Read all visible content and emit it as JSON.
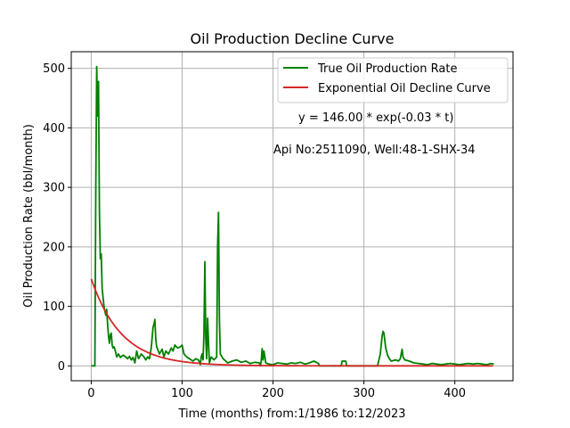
{
  "chart_data": {
    "type": "line",
    "title": "Oil Production Decline Curve",
    "xlabel": "Time (months) from:1/1986 to:12/2023",
    "ylabel": "Oil Production Rate (bbl/month)",
    "xlim": [
      -22,
      464
    ],
    "ylim": [
      -25,
      528
    ],
    "x_ticks": [
      0,
      100,
      200,
      300,
      400
    ],
    "y_ticks": [
      0,
      100,
      200,
      300,
      400,
      500
    ],
    "grid": true,
    "legend_position": "upper-right",
    "annotations": {
      "equation": "y = 146.00 * exp(-0.03 * t)",
      "well": "Api No:2511090, Well:48-1-SHX-34"
    },
    "series": [
      {
        "name": "True Oil Production Rate",
        "color": "#008000",
        "points": [
          [
            0,
            0
          ],
          [
            4,
            0
          ],
          [
            5,
            300
          ],
          [
            6,
            503
          ],
          [
            7,
            420
          ],
          [
            8,
            478
          ],
          [
            9,
            260
          ],
          [
            10,
            180
          ],
          [
            11,
            188
          ],
          [
            12,
            130
          ],
          [
            13,
            115
          ],
          [
            14,
            100
          ],
          [
            15,
            92
          ],
          [
            16,
            85
          ],
          [
            17,
            95
          ],
          [
            18,
            70
          ],
          [
            19,
            50
          ],
          [
            20,
            38
          ],
          [
            21,
            52
          ],
          [
            22,
            55
          ],
          [
            23,
            35
          ],
          [
            24,
            30
          ],
          [
            25,
            32
          ],
          [
            26,
            28
          ],
          [
            27,
            22
          ],
          [
            28,
            15
          ],
          [
            30,
            20
          ],
          [
            32,
            14
          ],
          [
            35,
            18
          ],
          [
            38,
            15
          ],
          [
            40,
            12
          ],
          [
            42,
            16
          ],
          [
            44,
            10
          ],
          [
            46,
            14
          ],
          [
            48,
            5
          ],
          [
            50,
            25
          ],
          [
            52,
            12
          ],
          [
            55,
            20
          ],
          [
            58,
            15
          ],
          [
            60,
            10
          ],
          [
            62,
            15
          ],
          [
            64,
            12
          ],
          [
            66,
            30
          ],
          [
            68,
            65
          ],
          [
            69,
            70
          ],
          [
            70,
            78
          ],
          [
            71,
            45
          ],
          [
            72,
            32
          ],
          [
            75,
            20
          ],
          [
            78,
            28
          ],
          [
            80,
            15
          ],
          [
            82,
            25
          ],
          [
            85,
            20
          ],
          [
            88,
            30
          ],
          [
            90,
            25
          ],
          [
            92,
            35
          ],
          [
            95,
            30
          ],
          [
            98,
            32
          ],
          [
            100,
            35
          ],
          [
            102,
            20
          ],
          [
            105,
            15
          ],
          [
            108,
            12
          ],
          [
            110,
            10
          ],
          [
            112,
            8
          ],
          [
            115,
            12
          ],
          [
            118,
            10
          ],
          [
            120,
            2
          ],
          [
            121,
            15
          ],
          [
            122,
            20
          ],
          [
            123,
            10
          ],
          [
            124,
            55
          ],
          [
            125,
            175
          ],
          [
            126,
            45
          ],
          [
            127,
            12
          ],
          [
            128,
            80
          ],
          [
            129,
            40
          ],
          [
            130,
            5
          ],
          [
            132,
            15
          ],
          [
            135,
            10
          ],
          [
            138,
            15
          ],
          [
            139,
            200
          ],
          [
            140,
            258
          ],
          [
            141,
            80
          ],
          [
            142,
            20
          ],
          [
            145,
            12
          ],
          [
            148,
            8
          ],
          [
            150,
            5
          ],
          [
            155,
            8
          ],
          [
            160,
            10
          ],
          [
            165,
            6
          ],
          [
            170,
            8
          ],
          [
            175,
            4
          ],
          [
            180,
            6
          ],
          [
            185,
            5
          ],
          [
            186,
            0
          ],
          [
            187,
            8
          ],
          [
            188,
            29
          ],
          [
            189,
            10
          ],
          [
            190,
            25
          ],
          [
            191,
            15
          ],
          [
            192,
            5
          ],
          [
            195,
            3
          ],
          [
            200,
            2
          ],
          [
            205,
            5
          ],
          [
            210,
            4
          ],
          [
            215,
            3
          ],
          [
            220,
            5
          ],
          [
            225,
            4
          ],
          [
            230,
            6
          ],
          [
            235,
            3
          ],
          [
            240,
            5
          ],
          [
            245,
            8
          ],
          [
            250,
            4
          ],
          [
            251,
            0
          ],
          [
            270,
            0
          ],
          [
            275,
            0
          ],
          [
            276,
            8
          ],
          [
            280,
            8
          ],
          [
            281,
            0
          ],
          [
            315,
            0
          ],
          [
            318,
            20
          ],
          [
            320,
            50
          ],
          [
            321,
            58
          ],
          [
            322,
            55
          ],
          [
            324,
            30
          ],
          [
            326,
            18
          ],
          [
            328,
            12
          ],
          [
            330,
            8
          ],
          [
            335,
            10
          ],
          [
            338,
            8
          ],
          [
            340,
            12
          ],
          [
            342,
            28
          ],
          [
            343,
            15
          ],
          [
            345,
            10
          ],
          [
            350,
            8
          ],
          [
            355,
            5
          ],
          [
            360,
            4
          ],
          [
            365,
            3
          ],
          [
            370,
            2
          ],
          [
            375,
            4
          ],
          [
            380,
            3
          ],
          [
            385,
            2
          ],
          [
            390,
            3
          ],
          [
            395,
            4
          ],
          [
            400,
            3
          ],
          [
            405,
            2
          ],
          [
            410,
            3
          ],
          [
            415,
            4
          ],
          [
            420,
            3
          ],
          [
            425,
            4
          ],
          [
            430,
            3
          ],
          [
            435,
            2
          ],
          [
            440,
            4
          ],
          [
            443,
            3
          ]
        ]
      },
      {
        "name": "Exponential Oil Decline Curve",
        "color": "#d62728",
        "model": {
          "a": 146.0,
          "b": 0.03,
          "x_start": 0,
          "x_end": 443
        }
      }
    ]
  }
}
